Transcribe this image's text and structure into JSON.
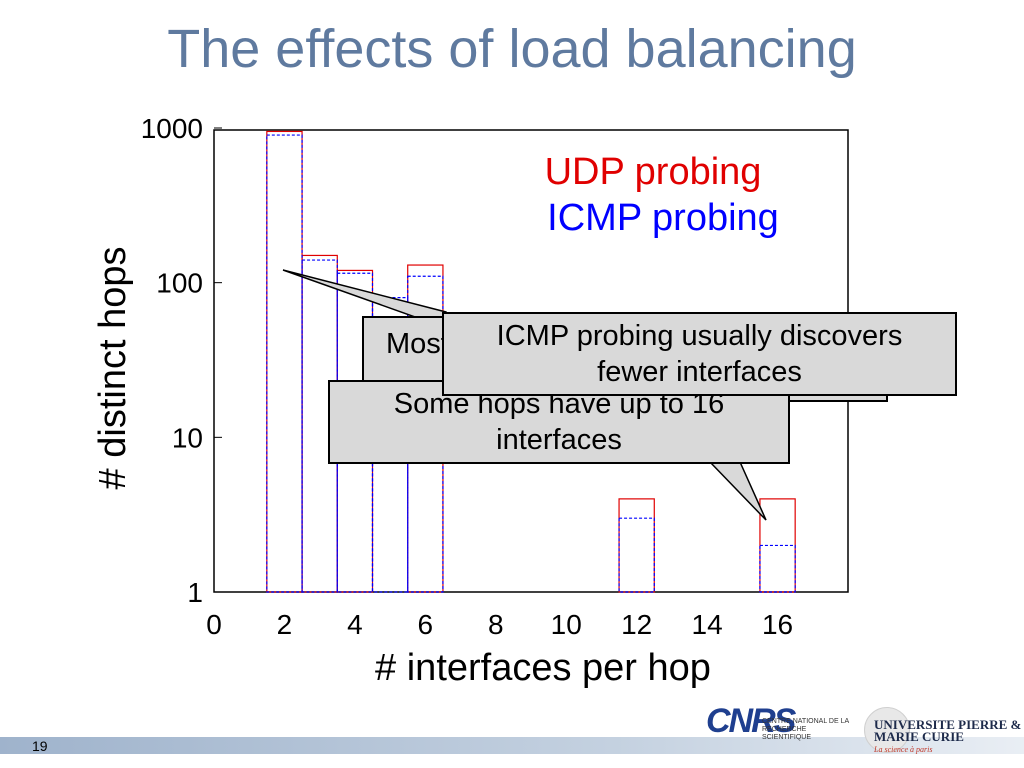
{
  "slide": {
    "title": "The effects of load balancing",
    "page_number": "19"
  },
  "chart_data": {
    "type": "bar",
    "xlabel": "# interfaces per hop",
    "ylabel": "# distinct hops",
    "y_scale": "log",
    "ylim": [
      1,
      1000
    ],
    "xlim": [
      0,
      18
    ],
    "x_ticks": [
      "0",
      "2",
      "4",
      "6",
      "8",
      "10",
      "12",
      "14",
      "16"
    ],
    "y_ticks": [
      "1",
      "10",
      "100",
      "1000"
    ],
    "grid": false,
    "legend_position": "top-right",
    "series": [
      {
        "name": "UDP probing",
        "color": "#e00000",
        "style": "solid",
        "points": [
          [
            2,
            950
          ],
          [
            3,
            150
          ],
          [
            4,
            120
          ],
          [
            6,
            130
          ],
          [
            12,
            4
          ],
          [
            16,
            4
          ]
        ]
      },
      {
        "name": "ICMP probing",
        "color": "#0000ff",
        "style": "dashed",
        "points": [
          [
            2,
            900
          ],
          [
            3,
            140
          ],
          [
            4,
            115
          ],
          [
            5,
            80
          ],
          [
            6,
            110
          ],
          [
            12,
            3
          ],
          [
            16,
            2
          ]
        ]
      }
    ]
  },
  "callouts": {
    "most": "Most",
    "icmp": "ICMP probing usually discovers fewer interfaces",
    "some": "Some hops have up to 16 interfaces"
  },
  "logos": {
    "cnrs_mark": "CNRS",
    "cnrs_text": "CENTRE NATIONAL DE LA RECHERCHE SCIENTIFIQUE",
    "upmc_text": "UNIVERSITE PIERRE & MARIE CURIE",
    "upmc_sub": "La science à paris"
  }
}
